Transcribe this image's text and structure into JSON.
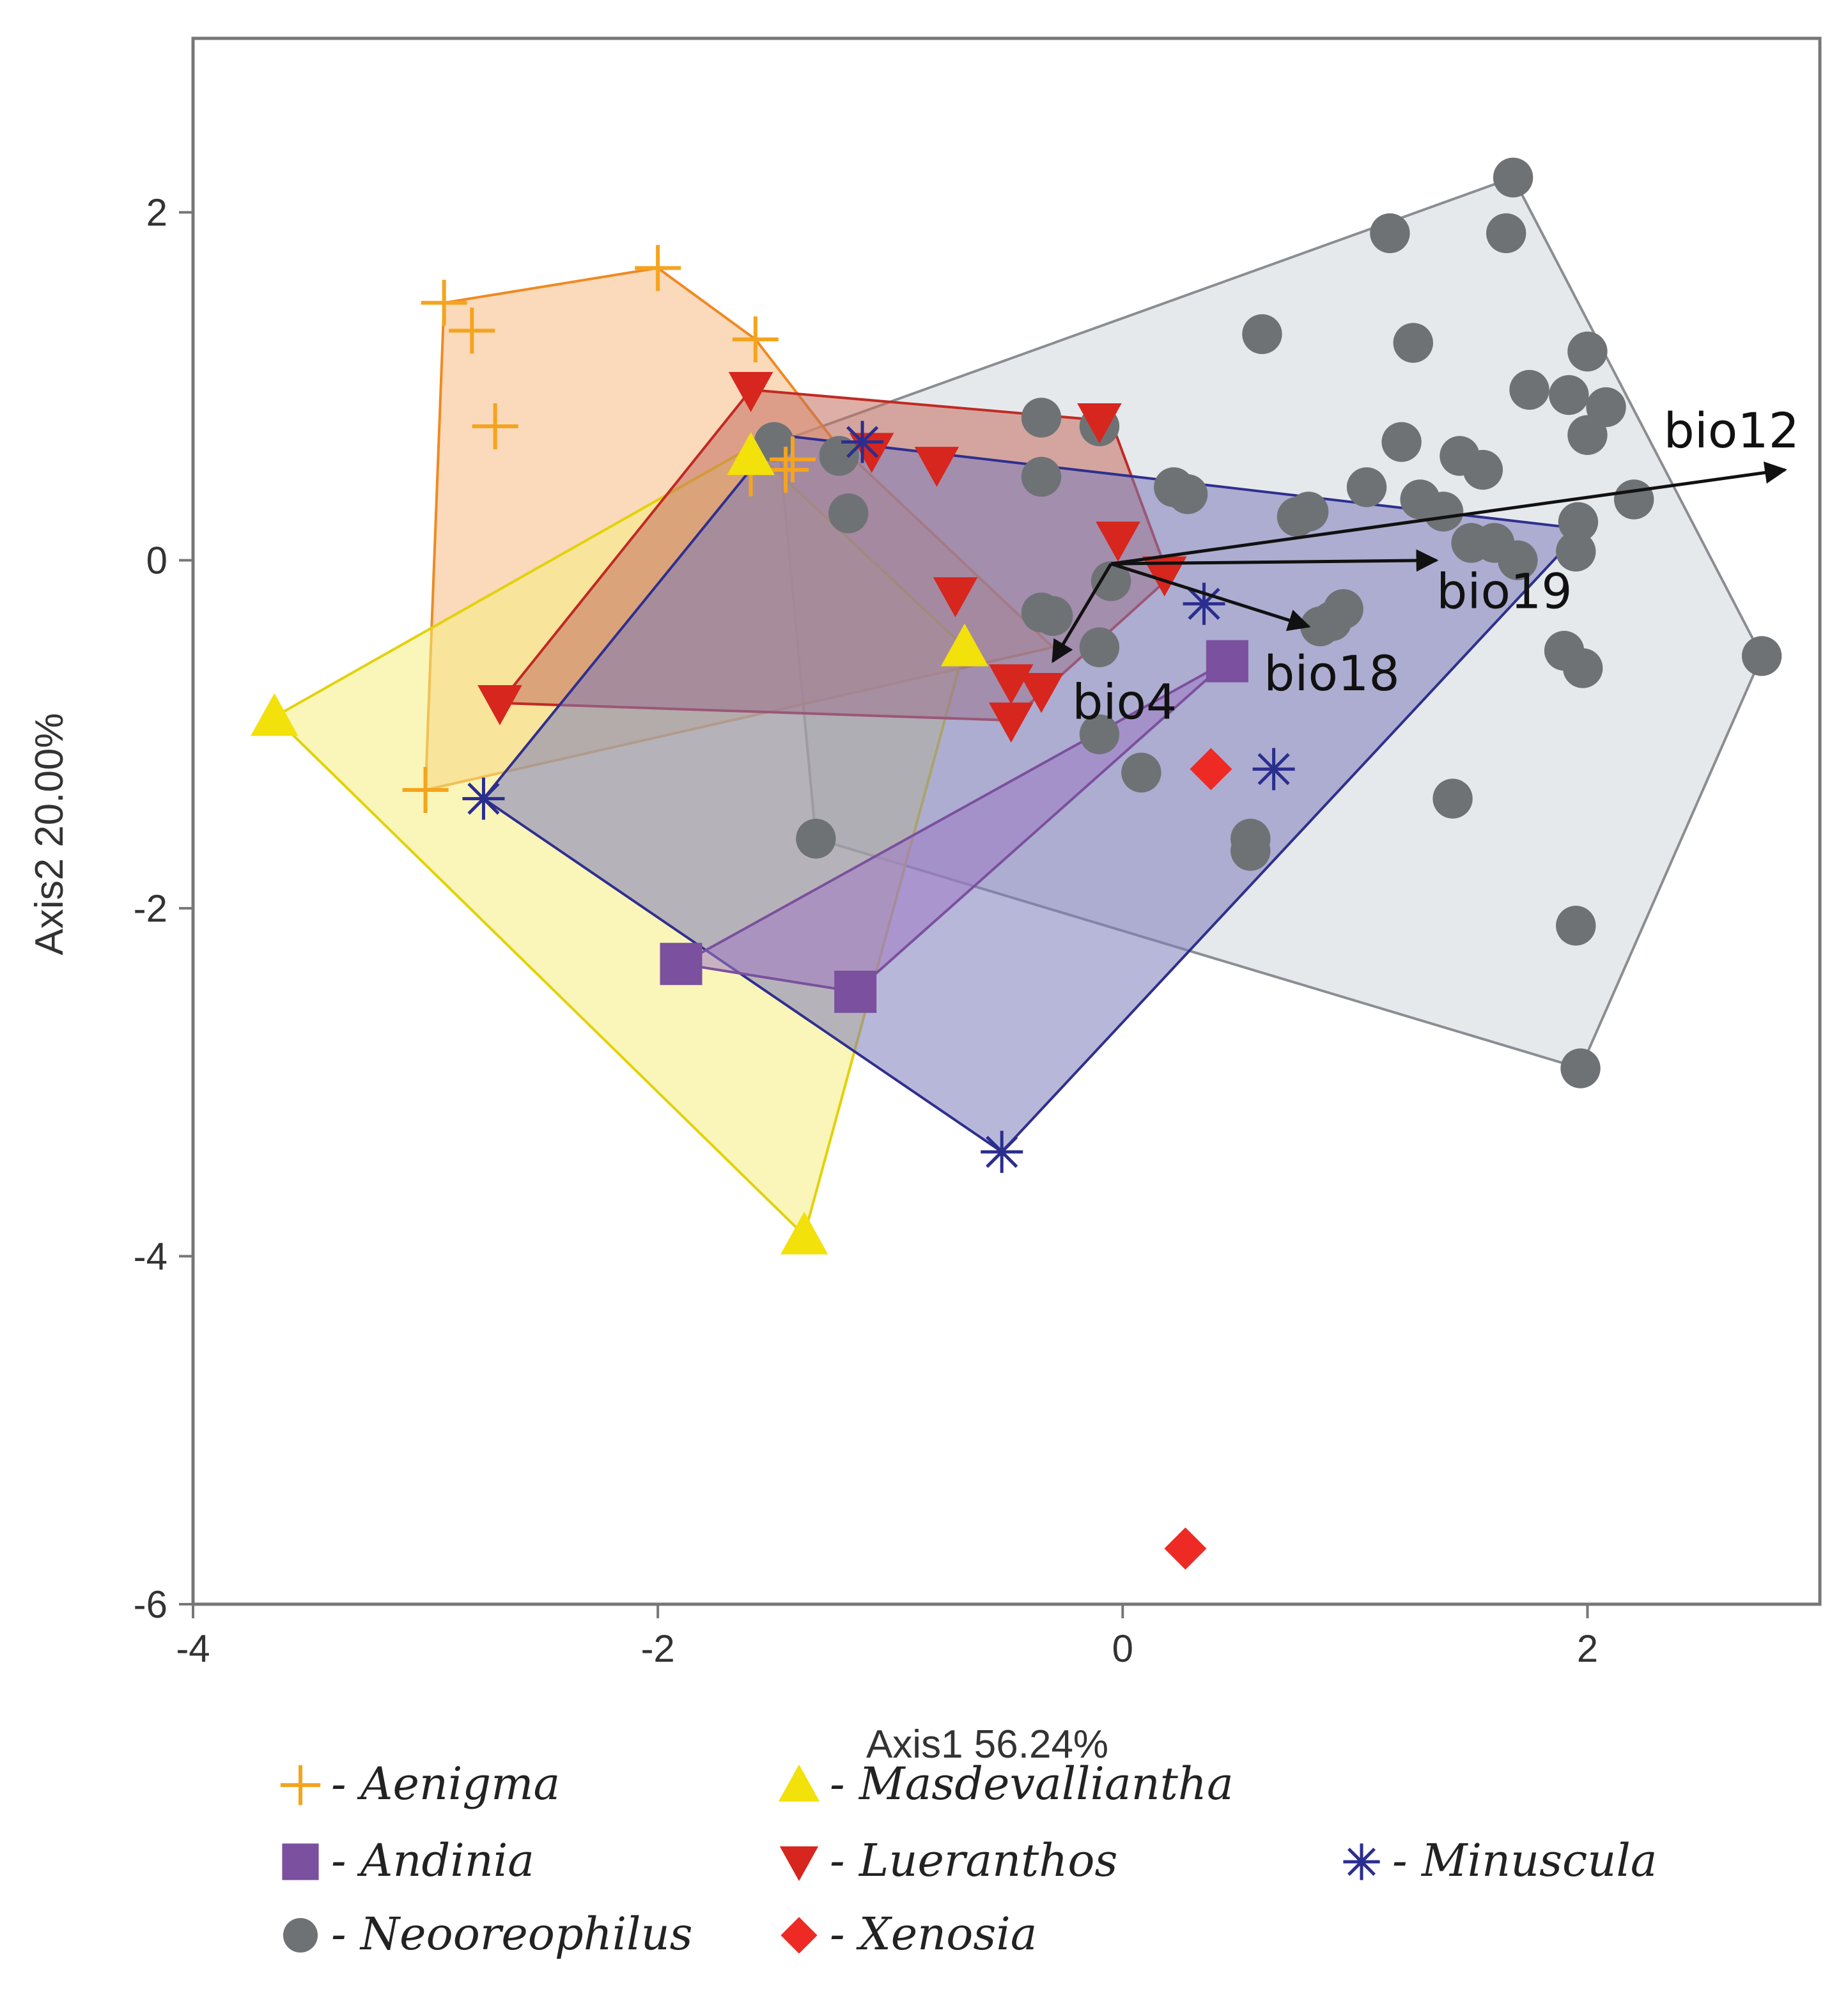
{
  "chart_data": {
    "type": "scatter",
    "xlabel": "Axis1 56.24%",
    "ylabel": "Axis2 20.00%",
    "xlim": [
      -4,
      3
    ],
    "ylim": [
      -6,
      3
    ],
    "xticks": [
      -4,
      -2,
      0,
      2
    ],
    "yticks": [
      -6,
      -4,
      -2,
      0,
      2
    ],
    "grid": false,
    "legend_position": "bottom",
    "series": [
      {
        "name": "Neooreophilus",
        "marker": "circle",
        "color": "#6e7275",
        "hull_fill": "#d2d7dc",
        "hull_stroke": "#8a8e92",
        "hull": [
          [
            1.68,
            2.2
          ],
          [
            2.75,
            -0.55
          ],
          [
            1.97,
            -2.92
          ],
          [
            -1.32,
            -1.6
          ],
          [
            -1.48,
            0.68
          ]
        ],
        "points": [
          [
            1.68,
            2.2
          ],
          [
            1.65,
            1.88
          ],
          [
            1.15,
            1.88
          ],
          [
            0.6,
            1.3
          ],
          [
            1.25,
            1.25
          ],
          [
            2.0,
            1.2
          ],
          [
            1.75,
            0.98
          ],
          [
            1.92,
            0.95
          ],
          [
            2.08,
            0.88
          ],
          [
            2.0,
            0.72
          ],
          [
            -0.35,
            0.82
          ],
          [
            -0.1,
            0.77
          ],
          [
            1.2,
            0.68
          ],
          [
            1.45,
            0.6
          ],
          [
            1.55,
            0.52
          ],
          [
            1.05,
            0.42
          ],
          [
            1.28,
            0.35
          ],
          [
            2.2,
            0.35
          ],
          [
            0.8,
            0.28
          ],
          [
            0.75,
            0.25
          ],
          [
            1.38,
            0.28
          ],
          [
            1.5,
            0.1
          ],
          [
            1.6,
            0.1
          ],
          [
            1.7,
            0.0
          ],
          [
            1.95,
            0.05
          ],
          [
            1.96,
            0.22
          ],
          [
            0.22,
            0.42
          ],
          [
            0.28,
            0.38
          ],
          [
            -0.35,
            0.48
          ],
          [
            -1.5,
            0.68
          ],
          [
            -1.22,
            0.6
          ],
          [
            -1.18,
            0.27
          ],
          [
            -0.05,
            -0.12
          ],
          [
            -0.35,
            -0.3
          ],
          [
            0.95,
            -0.28
          ],
          [
            0.9,
            -0.35
          ],
          [
            0.85,
            -0.38
          ],
          [
            1.9,
            -0.52
          ],
          [
            1.98,
            -0.62
          ],
          [
            2.75,
            -0.55
          ],
          [
            -0.1,
            -0.5
          ],
          [
            -0.1,
            -1.0
          ],
          [
            0.08,
            -1.22
          ],
          [
            0.55,
            -1.6
          ],
          [
            0.55,
            -1.67
          ],
          [
            1.42,
            -1.37
          ],
          [
            1.95,
            -2.1
          ],
          [
            1.97,
            -2.92
          ],
          [
            -1.32,
            -1.6
          ],
          [
            -0.3,
            -0.32
          ]
        ]
      },
      {
        "name": "Aenigma",
        "marker": "plus",
        "color": "#f5a41e",
        "hull_fill": "#f7b983",
        "hull_stroke": "#ee8a22",
        "hull": [
          [
            -2.0,
            1.68
          ],
          [
            -1.58,
            1.27
          ],
          [
            -1.25,
            0.7
          ],
          [
            -0.3,
            -0.5
          ],
          [
            -3.0,
            -1.32
          ],
          [
            -2.92,
            1.48
          ]
        ],
        "points": [
          [
            -2.0,
            1.68
          ],
          [
            -2.92,
            1.48
          ],
          [
            -2.8,
            1.32
          ],
          [
            -1.58,
            1.27
          ],
          [
            -2.7,
            0.77
          ],
          [
            -1.6,
            0.5
          ],
          [
            -1.45,
            0.52
          ],
          [
            -1.42,
            0.58
          ],
          [
            -3.0,
            -1.32
          ]
        ]
      },
      {
        "name": "Masdevalliantha",
        "marker": "triangle",
        "color": "#f2e10a",
        "hull_fill": "#f5ec7f",
        "hull_stroke": "#e2d20a",
        "hull": [
          [
            -1.6,
            0.65
          ],
          [
            -0.68,
            -0.5
          ],
          [
            -1.37,
            -3.88
          ],
          [
            -3.65,
            -0.9
          ]
        ],
        "points": [
          [
            -3.65,
            -0.9
          ],
          [
            -0.68,
            -0.5
          ],
          [
            -1.37,
            -3.88
          ],
          [
            -1.6,
            0.6
          ]
        ]
      },
      {
        "name": "Lueranthos",
        "marker": "triangle-down",
        "color": "#d6261e",
        "hull_fill": "#c36e5e",
        "hull_stroke": "#c02a25",
        "hull": [
          [
            -1.6,
            0.98
          ],
          [
            -0.05,
            0.8
          ],
          [
            0.2,
            -0.1
          ],
          [
            -0.48,
            -0.92
          ],
          [
            -2.68,
            -0.82
          ]
        ],
        "points": [
          [
            -1.6,
            0.98
          ],
          [
            -0.1,
            0.8
          ],
          [
            -1.08,
            0.63
          ],
          [
            -0.8,
            0.55
          ],
          [
            -0.02,
            0.12
          ],
          [
            0.18,
            -0.08
          ],
          [
            -0.72,
            -0.2
          ],
          [
            -0.48,
            -0.7
          ],
          [
            -0.35,
            -0.75
          ],
          [
            -0.48,
            -0.92
          ],
          [
            -2.68,
            -0.82
          ]
        ]
      },
      {
        "name": "Minuscula",
        "marker": "asterisk",
        "color": "#2b2e8e",
        "hull_fill": "#7c7cba",
        "hull_stroke": "#2f2f8f",
        "hull": [
          [
            -1.48,
            0.72
          ],
          [
            1.98,
            0.18
          ],
          [
            -0.52,
            -3.4
          ],
          [
            -2.75,
            -1.37
          ]
        ],
        "points": [
          [
            -1.12,
            0.68
          ],
          [
            0.35,
            -0.25
          ],
          [
            0.65,
            -1.2
          ],
          [
            -2.75,
            -1.37
          ],
          [
            -0.52,
            -3.4
          ]
        ]
      },
      {
        "name": "Andinia",
        "marker": "square",
        "color": "#7b509e",
        "hull_fill": "#a07ac4",
        "hull_stroke": "#7b509e",
        "hull": [
          [
            0.45,
            -0.58
          ],
          [
            -1.15,
            -2.48
          ],
          [
            -1.9,
            -2.32
          ]
        ],
        "points": [
          [
            0.45,
            -0.58
          ],
          [
            -1.9,
            -2.32
          ],
          [
            -1.15,
            -2.48
          ]
        ]
      },
      {
        "name": "Xenosia",
        "marker": "diamond",
        "color": "#ee2a24",
        "hull_fill": "none",
        "hull_stroke": "none",
        "hull": [],
        "points": [
          [
            0.38,
            -1.2
          ],
          [
            0.27,
            -5.68
          ]
        ]
      }
    ],
    "vectors": [
      {
        "name": "bio12",
        "x": 2.85,
        "y": 0.52
      },
      {
        "name": "bio19",
        "x": 1.35,
        "y": 0.0
      },
      {
        "name": "bio18",
        "x": 0.8,
        "y": -0.38
      },
      {
        "name": "bio4",
        "x": -0.3,
        "y": -0.58
      }
    ],
    "vector_origin": [
      -0.05,
      -0.02
    ],
    "legend": [
      {
        "marker": "plus",
        "color": "#f5a41e",
        "label": "- Aenigma"
      },
      {
        "marker": "triangle",
        "color": "#f2e10a",
        "label": "- Masdevalliantha"
      },
      {
        "marker": "square",
        "color": "#7b509e",
        "label": "- Andinia"
      },
      {
        "marker": "triangle-down",
        "color": "#d6261e",
        "label": "- Lueranthos"
      },
      {
        "marker": "asterisk",
        "color": "#2b2e8e",
        "label": "- Minuscula"
      },
      {
        "marker": "circle",
        "color": "#6e7275",
        "label": "- Neooreophilus"
      },
      {
        "marker": "diamond",
        "color": "#ee2a24",
        "label": "- Xenosia"
      }
    ]
  }
}
